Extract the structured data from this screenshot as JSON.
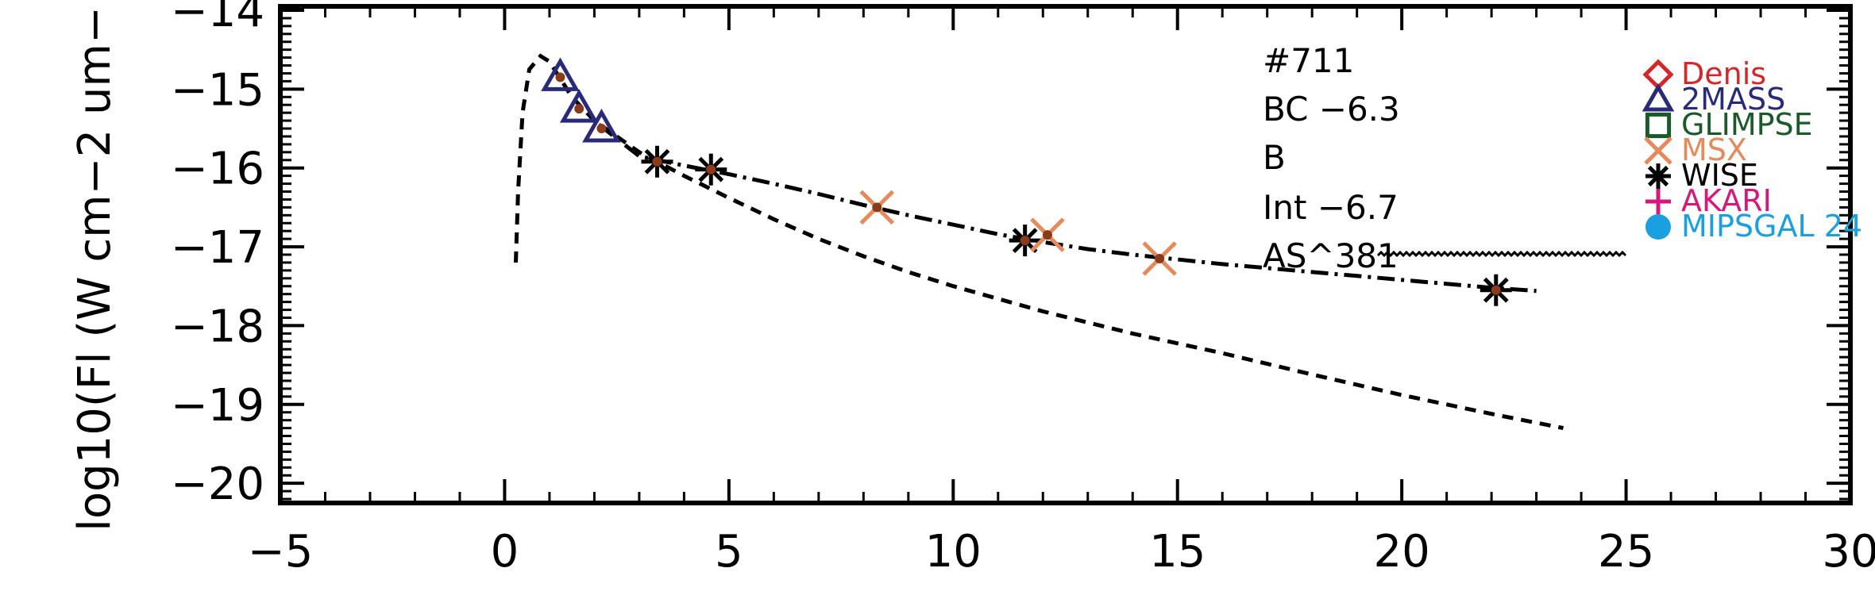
{
  "chart_data": {
    "type": "scatter",
    "ylabel": "log10(Fl (W cm−2 um−",
    "xlim": [
      -5,
      30
    ],
    "ylim": [
      -20.25,
      -13.95
    ],
    "x_ticks": [
      -5,
      0,
      5,
      10,
      15,
      20,
      25,
      30
    ],
    "y_ticks": [
      -20,
      -19,
      -18,
      -17,
      -16,
      -15,
      -14
    ],
    "x_tick_labels": [
      "−5",
      "0",
      "5",
      "10",
      "15",
      "20",
      "25",
      "30"
    ],
    "y_tick_labels": [
      "−20",
      "−19",
      "−18",
      "−17",
      "−16",
      "−15",
      "−14"
    ],
    "annotations": [
      "#711",
      "BC −6.3",
      "B",
      "Int −6.7",
      "AS^381"
    ],
    "legend": [
      {
        "name": "Denis",
        "symbol": "diamond",
        "color": "#d62728"
      },
      {
        "name": "2MASS",
        "symbol": "triangle",
        "color": "#2a2a7a"
      },
      {
        "name": "GLIMPSE",
        "symbol": "square",
        "color": "#1a5a2a"
      },
      {
        "name": "MSX",
        "symbol": "x",
        "color": "#e58a5a"
      },
      {
        "name": "WISE",
        "symbol": "asterisk",
        "color": "#000000"
      },
      {
        "name": "AKARI",
        "symbol": "plus",
        "color": "#d6187a"
      },
      {
        "name": "MIPSGAL 24",
        "symbol": "circle",
        "color": "#1aa0e0"
      }
    ],
    "series": [
      {
        "name": "2MASS",
        "symbol": "triangle",
        "color": "#2a2a7a",
        "points": [
          [
            1.24,
            -14.85
          ],
          [
            1.66,
            -15.25
          ],
          [
            2.16,
            -15.5
          ]
        ]
      },
      {
        "name": "WISE",
        "symbol": "asterisk",
        "color": "#000000",
        "points": [
          [
            3.4,
            -15.92
          ],
          [
            4.6,
            -16.02
          ],
          [
            11.6,
            -16.92
          ],
          [
            22.1,
            -17.55
          ]
        ]
      },
      {
        "name": "MSX",
        "symbol": "x",
        "color": "#e58a5a",
        "points": [
          [
            8.3,
            -16.5
          ],
          [
            12.1,
            -16.85
          ],
          [
            14.6,
            -17.15
          ]
        ]
      }
    ],
    "curves": [
      {
        "style": "dashed",
        "points": [
          [
            0.25,
            -17.2
          ],
          [
            0.3,
            -16.3
          ],
          [
            0.4,
            -15.3
          ],
          [
            0.55,
            -14.75
          ],
          [
            0.8,
            -14.58
          ],
          [
            1.0,
            -14.65
          ],
          [
            1.5,
            -15.1
          ],
          [
            2.0,
            -15.4
          ],
          [
            3.0,
            -15.8
          ],
          [
            4.0,
            -16.1
          ],
          [
            5.0,
            -16.38
          ],
          [
            6.0,
            -16.65
          ],
          [
            7.0,
            -16.9
          ],
          [
            8.0,
            -17.12
          ],
          [
            9.0,
            -17.32
          ],
          [
            10.0,
            -17.5
          ],
          [
            12.0,
            -17.82
          ],
          [
            14.0,
            -18.1
          ],
          [
            16.0,
            -18.35
          ],
          [
            18.0,
            -18.62
          ],
          [
            20.0,
            -18.88
          ],
          [
            22.0,
            -19.12
          ],
          [
            23.6,
            -19.3
          ]
        ]
      },
      {
        "style": "dashdot",
        "points": [
          [
            2.1,
            -15.45
          ],
          [
            3.0,
            -15.85
          ],
          [
            4.0,
            -15.97
          ],
          [
            5.0,
            -16.08
          ],
          [
            6.0,
            -16.2
          ],
          [
            7.0,
            -16.33
          ],
          [
            8.0,
            -16.47
          ],
          [
            9.0,
            -16.6
          ],
          [
            10.0,
            -16.72
          ],
          [
            11.0,
            -16.84
          ],
          [
            12.0,
            -16.94
          ],
          [
            13.0,
            -17.03
          ],
          [
            14.0,
            -17.1
          ],
          [
            15.0,
            -17.16
          ],
          [
            16.0,
            -17.22
          ],
          [
            17.0,
            -17.27
          ],
          [
            18.0,
            -17.32
          ],
          [
            19.0,
            -17.37
          ],
          [
            20.0,
            -17.42
          ],
          [
            21.0,
            -17.47
          ],
          [
            22.0,
            -17.52
          ],
          [
            23.0,
            -17.56
          ]
        ]
      }
    ]
  }
}
